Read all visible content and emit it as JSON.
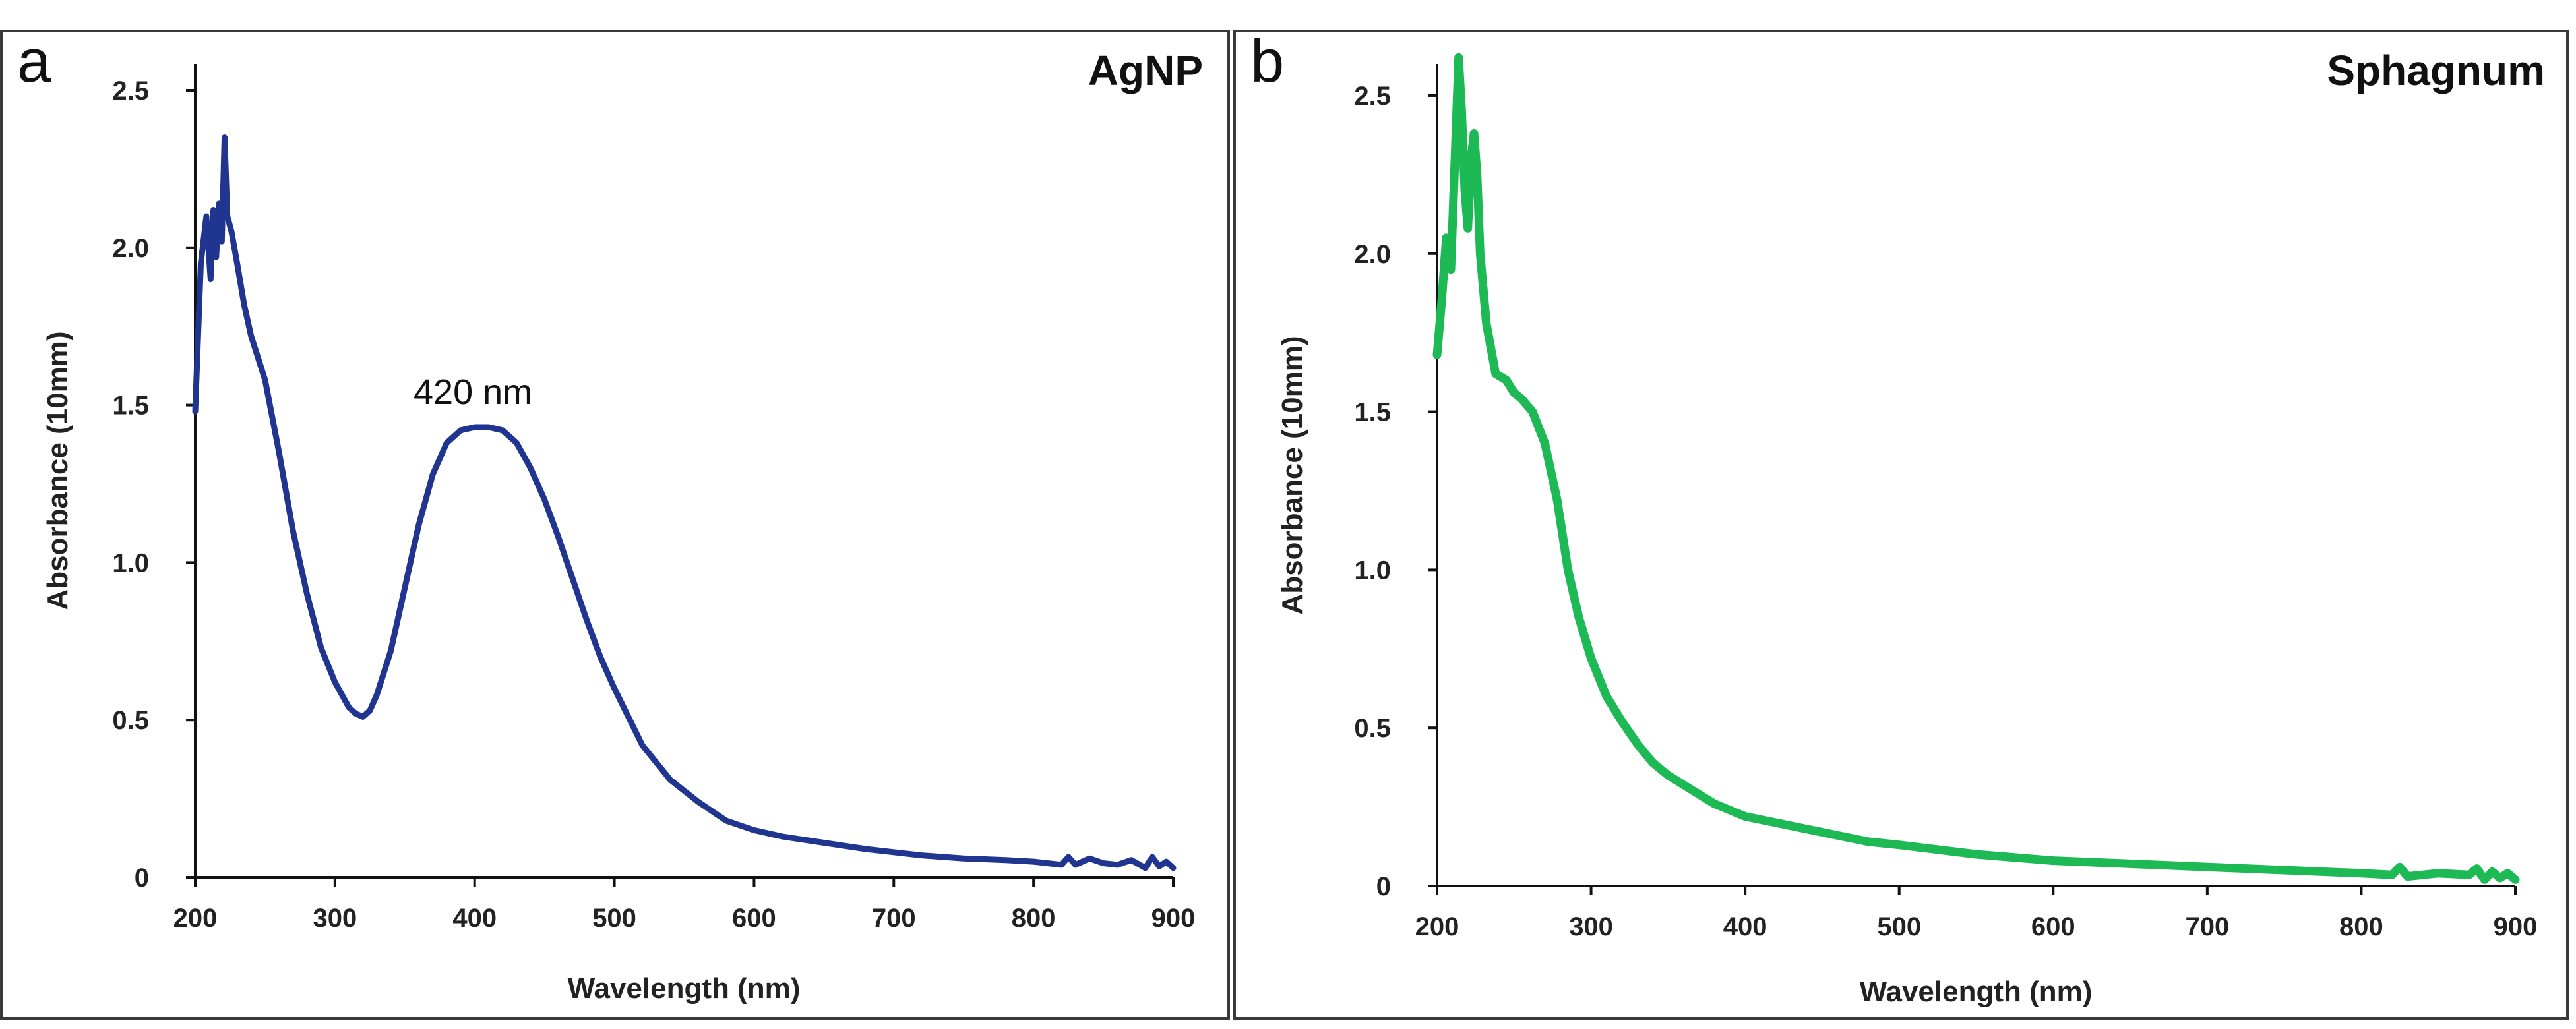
{
  "chart_data": [
    {
      "type": "line",
      "panel_letter": "a",
      "title": "AgNP",
      "xlabel": "Wavelength (nm)",
      "ylabel": "Absorbance (10mm)",
      "xlim": [
        200,
        900
      ],
      "ylim": [
        0,
        2.5
      ],
      "xticks": [
        200,
        300,
        400,
        500,
        600,
        700,
        800,
        900
      ],
      "xtick_labels": [
        "200",
        "300",
        "400",
        "500",
        "600",
        "700",
        "800",
        "900"
      ],
      "yticks": [
        0,
        0.5,
        1.0,
        1.5,
        2.0,
        2.5
      ],
      "ytick_labels": [
        "0",
        "0.5",
        "1.0",
        "1.5",
        "2.0",
        "2.5"
      ],
      "annotation": {
        "text": "420 nm",
        "x": 420,
        "y": 1.43
      },
      "grid": false,
      "series": [
        {
          "name": "AgNP",
          "color": "#1f3590",
          "x": [
            200,
            204,
            208,
            211,
            213,
            215,
            217,
            219,
            221,
            223,
            226,
            230,
            235,
            240,
            250,
            260,
            270,
            280,
            290,
            300,
            310,
            315,
            320,
            325,
            330,
            340,
            350,
            360,
            370,
            380,
            390,
            400,
            410,
            420,
            430,
            440,
            450,
            460,
            470,
            480,
            490,
            500,
            520,
            540,
            560,
            580,
            600,
            620,
            650,
            680,
            700,
            720,
            750,
            780,
            800,
            820,
            825,
            830,
            840,
            850,
            860,
            870,
            880,
            885,
            890,
            895,
            900
          ],
          "y": [
            1.48,
            1.95,
            2.1,
            1.9,
            2.12,
            1.97,
            2.14,
            2.02,
            2.35,
            2.1,
            2.05,
            1.95,
            1.82,
            1.72,
            1.58,
            1.35,
            1.1,
            0.9,
            0.73,
            0.62,
            0.54,
            0.52,
            0.51,
            0.53,
            0.58,
            0.72,
            0.92,
            1.12,
            1.28,
            1.38,
            1.42,
            1.43,
            1.43,
            1.42,
            1.38,
            1.3,
            1.2,
            1.08,
            0.95,
            0.82,
            0.7,
            0.6,
            0.42,
            0.31,
            0.24,
            0.18,
            0.15,
            0.13,
            0.11,
            0.09,
            0.08,
            0.07,
            0.06,
            0.055,
            0.05,
            0.04,
            0.065,
            0.04,
            0.06,
            0.045,
            0.04,
            0.055,
            0.03,
            0.065,
            0.035,
            0.05,
            0.03
          ]
        }
      ]
    },
    {
      "type": "line",
      "panel_letter": "b",
      "title": "Sphagnum",
      "xlabel": "Wavelength (nm)",
      "ylabel": "Absorbance (10mm)",
      "xlim": [
        200,
        900
      ],
      "ylim": [
        0,
        2.6
      ],
      "xticks": [
        200,
        300,
        400,
        500,
        600,
        700,
        800,
        900
      ],
      "xtick_labels": [
        "200",
        "300",
        "400",
        "500",
        "600",
        "700",
        "800",
        "900"
      ],
      "yticks": [
        0,
        0.5,
        1.0,
        1.5,
        2.0,
        2.5
      ],
      "ytick_labels": [
        "0",
        "0.5",
        "1.0",
        "1.5",
        "2.0",
        "2.5"
      ],
      "grid": false,
      "series": [
        {
          "name": "Sphagnum",
          "color": "#1db954",
          "x": [
            200,
            203,
            206,
            209,
            212,
            214,
            216,
            218,
            220,
            222,
            224,
            226,
            228,
            232,
            238,
            245,
            250,
            255,
            262,
            270,
            278,
            285,
            292,
            300,
            310,
            320,
            330,
            340,
            350,
            360,
            380,
            400,
            420,
            450,
            480,
            500,
            550,
            600,
            650,
            700,
            750,
            800,
            820,
            825,
            830,
            850,
            870,
            875,
            880,
            885,
            890,
            895,
            900
          ],
          "y": [
            1.68,
            1.85,
            2.05,
            1.95,
            2.35,
            2.62,
            2.45,
            2.2,
            2.08,
            2.3,
            2.38,
            2.25,
            2.0,
            1.78,
            1.62,
            1.6,
            1.56,
            1.54,
            1.5,
            1.4,
            1.22,
            1.0,
            0.85,
            0.72,
            0.6,
            0.52,
            0.45,
            0.39,
            0.35,
            0.32,
            0.26,
            0.22,
            0.2,
            0.17,
            0.14,
            0.13,
            0.1,
            0.08,
            0.07,
            0.06,
            0.05,
            0.04,
            0.035,
            0.06,
            0.03,
            0.04,
            0.035,
            0.055,
            0.02,
            0.045,
            0.025,
            0.04,
            0.02
          ]
        }
      ]
    }
  ]
}
